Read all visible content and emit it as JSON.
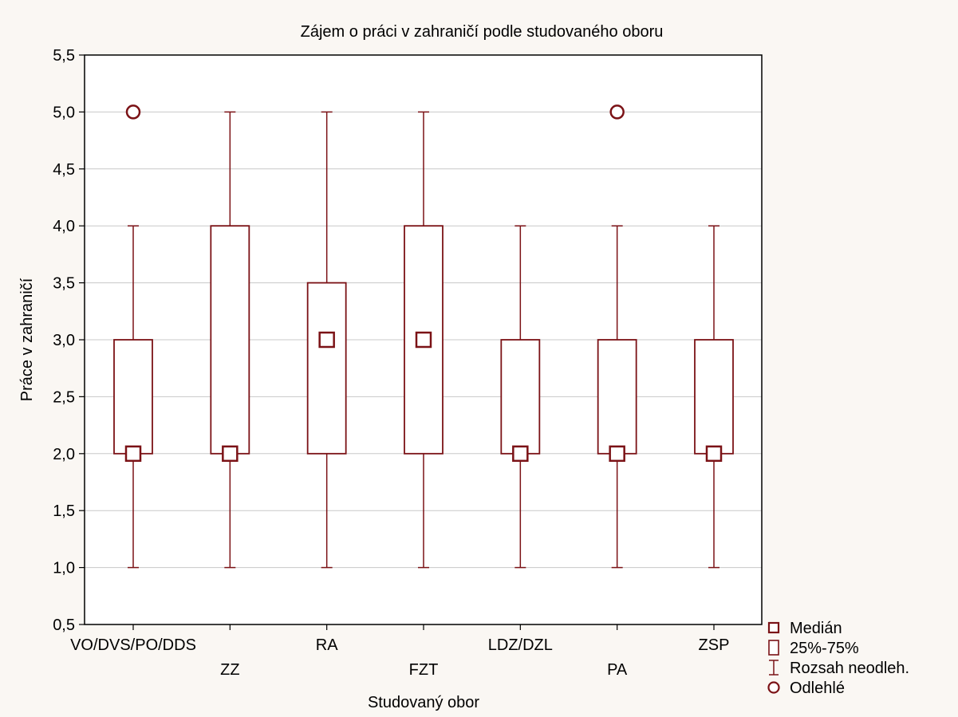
{
  "chart_data": {
    "type": "boxplot",
    "title": "Zájem o práci v zahraničí podle studovaného oboru",
    "xlabel": "Studovaný obor",
    "ylabel": "Práce v zahraničí",
    "ylim": [
      0.5,
      5.5
    ],
    "yticks": [
      "0,5",
      "1,0",
      "1,5",
      "2,0",
      "2,5",
      "3,0",
      "3,5",
      "4,0",
      "4,5",
      "5,0",
      "5,5"
    ],
    "ytick_values": [
      0.5,
      1.0,
      1.5,
      2.0,
      2.5,
      3.0,
      3.5,
      4.0,
      4.5,
      5.0,
      5.5
    ],
    "grid": true,
    "categories": [
      "VO/DVS/PO/DDS",
      "ZZ",
      "RA",
      "FZT",
      "LDZ/DZL",
      "PA",
      "ZSP"
    ],
    "boxes": [
      {
        "category": "VO/DVS/PO/DDS",
        "median": 2.0,
        "q1": 2.0,
        "q3": 3.0,
        "whisker_low": 1.0,
        "whisker_high": 4.0,
        "outliers": [
          5.0
        ]
      },
      {
        "category": "ZZ",
        "median": 2.0,
        "q1": 2.0,
        "q3": 4.0,
        "whisker_low": 1.0,
        "whisker_high": 5.0,
        "outliers": []
      },
      {
        "category": "RA",
        "median": 3.0,
        "q1": 2.0,
        "q3": 3.5,
        "whisker_low": 1.0,
        "whisker_high": 5.0,
        "outliers": []
      },
      {
        "category": "FZT",
        "median": 3.0,
        "q1": 2.0,
        "q3": 4.0,
        "whisker_low": 1.0,
        "whisker_high": 5.0,
        "outliers": []
      },
      {
        "category": "LDZ/DZL",
        "median": 2.0,
        "q1": 2.0,
        "q3": 3.0,
        "whisker_low": 1.0,
        "whisker_high": 4.0,
        "outliers": []
      },
      {
        "category": "PA",
        "median": 2.0,
        "q1": 2.0,
        "q3": 3.0,
        "whisker_low": 1.0,
        "whisker_high": 4.0,
        "outliers": [
          5.0
        ]
      },
      {
        "category": "ZSP",
        "median": 2.0,
        "q1": 2.0,
        "q3": 3.0,
        "whisker_low": 1.0,
        "whisker_high": 4.0,
        "outliers": []
      }
    ],
    "legend": {
      "position": "bottom-right",
      "items": [
        {
          "symbol": "square",
          "label": "Medián"
        },
        {
          "symbol": "box",
          "label": "25%-75%"
        },
        {
          "symbol": "whisker",
          "label": "Rozsah neodleh."
        },
        {
          "symbol": "circle",
          "label": "Odlehlé"
        }
      ]
    },
    "colors": {
      "series": "#7b1216",
      "plot_background": "#ffffff",
      "page_background": "#faf7f3",
      "grid": "#c8c8c8"
    }
  }
}
